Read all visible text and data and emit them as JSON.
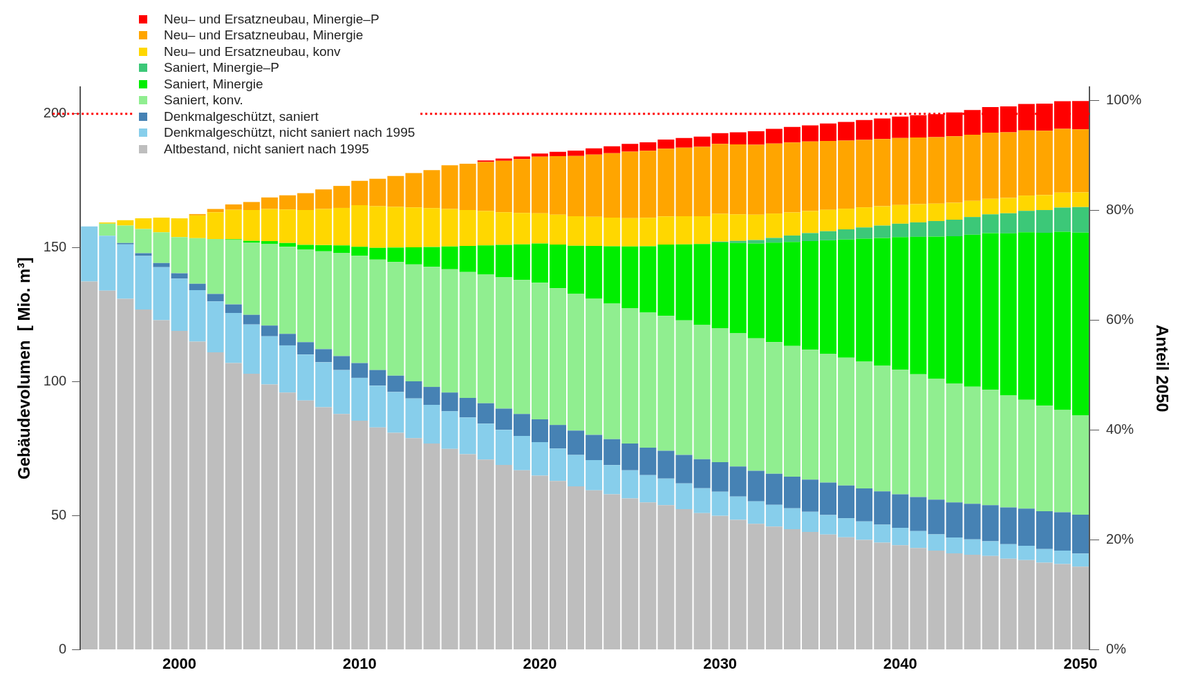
{
  "chart_data": {
    "type": "bar",
    "stacked": true,
    "ylabel": "Gebäudevolumen  [ Mio. m³]",
    "y2label": "Anteil 2050",
    "categories": [
      null,
      null,
      null,
      null,
      null,
      "2000",
      null,
      null,
      null,
      null,
      null,
      null,
      null,
      null,
      null,
      "2010",
      null,
      null,
      null,
      null,
      null,
      null,
      null,
      null,
      null,
      "2020",
      null,
      null,
      null,
      null,
      null,
      null,
      null,
      null,
      null,
      "2030",
      null,
      null,
      null,
      null,
      null,
      null,
      null,
      null,
      null,
      "2040",
      null,
      null,
      null,
      null,
      null,
      null,
      null,
      null,
      null,
      "2050"
    ],
    "ylim": [
      0,
      210
    ],
    "yticks": [
      0,
      50,
      100,
      150,
      200
    ],
    "y2lim": [
      0,
      102.4
    ],
    "y2ticks": [
      {
        "value": 0,
        "label": "0%"
      },
      {
        "value": 20,
        "label": "20%"
      },
      {
        "value": 40,
        "label": "40%"
      },
      {
        "value": 60,
        "label": "60%"
      },
      {
        "value": 80,
        "label": "80%"
      },
      {
        "value": 100,
        "label": "100%"
      }
    ],
    "legend": "top left",
    "ref_lines": [
      {
        "axis": "y",
        "value": 200,
        "color": "#ff0000",
        "line_style": "dotted"
      }
    ],
    "series": [
      {
        "name": "Altbestand, nicht saniert nach 1995",
        "color": "#bebebe",
        "values": [
          137.4,
          134,
          131,
          127,
          123,
          119,
          115,
          111,
          107,
          103,
          99,
          96,
          93,
          90.5,
          88,
          85.5,
          83,
          81,
          79,
          77,
          75,
          73,
          71,
          69,
          67,
          65,
          63,
          61,
          59.5,
          58,
          56.5,
          55,
          54,
          52.5,
          51,
          50,
          48.5,
          47,
          46,
          45,
          44,
          43,
          42,
          41,
          40,
          39,
          38,
          37,
          36,
          35.5,
          35,
          34,
          33.5,
          32.5,
          32,
          31
        ]
      },
      {
        "name": "Denkmalgeschützt, nicht saniert nach 1995",
        "color": "#87ceeb",
        "values": [
          20.6,
          20.5,
          20.3,
          20,
          19.8,
          19.5,
          19.2,
          19,
          18.7,
          18.4,
          18,
          17.6,
          17.2,
          16.8,
          16.4,
          16,
          15.6,
          15.2,
          14.8,
          14.4,
          14,
          13.7,
          13.4,
          13.1,
          12.8,
          12.5,
          12.1,
          11.7,
          11.3,
          10.9,
          10.5,
          10.2,
          9.9,
          9.6,
          9.3,
          9,
          8.7,
          8.4,
          8.1,
          7.8,
          7.5,
          7.3,
          7.1,
          6.9,
          6.7,
          6.5,
          6.3,
          6.1,
          5.9,
          5.7,
          5.5,
          5.4,
          5.3,
          5.1,
          5,
          4.9
        ]
      },
      {
        "name": "Denkmalgeschützt, saniert",
        "color": "#4682b4",
        "values": [
          0,
          0,
          0.5,
          1,
          1.5,
          2,
          2.4,
          2.8,
          3.2,
          3.6,
          4,
          4.3,
          4.6,
          4.9,
          5.2,
          5.5,
          5.8,
          6.1,
          6.4,
          6.7,
          7,
          7.3,
          7.6,
          7.9,
          8.2,
          8.5,
          8.8,
          9.1,
          9.4,
          9.7,
          10,
          10.2,
          10.4,
          10.6,
          10.8,
          11,
          11.2,
          11.4,
          11.6,
          11.8,
          12,
          12.1,
          12.2,
          12.3,
          12.4,
          12.5,
          12.7,
          12.9,
          13.1,
          13.3,
          13.5,
          13.7,
          13.9,
          14.1,
          14.3,
          14.5
        ]
      },
      {
        "name": "Saniert, konv.",
        "color": "#90ee90",
        "values": [
          0,
          4.5,
          6.5,
          9,
          11.5,
          13.5,
          17,
          20.5,
          24,
          27,
          30.5,
          32.5,
          34.5,
          36.5,
          38.5,
          40,
          41.2,
          42.4,
          43.6,
          44.8,
          46,
          47,
          48,
          49,
          50,
          51,
          51,
          51,
          50.8,
          50.6,
          50.5,
          50.4,
          50.3,
          50.2,
          50.1,
          50,
          49.7,
          49.4,
          49.1,
          48.8,
          48.5,
          48.1,
          47.7,
          47.3,
          46.9,
          46.5,
          45.8,
          45.1,
          44.4,
          43.7,
          43,
          41.8,
          40.6,
          39.4,
          38.2,
          37
        ]
      },
      {
        "name": "Saniert, Minergie",
        "color": "#00ee00",
        "values": [
          0,
          0,
          0,
          0,
          0,
          0,
          0,
          0,
          0.3,
          0.6,
          1,
          1.4,
          1.8,
          2.3,
          2.8,
          3.4,
          4.4,
          5.4,
          6.4,
          7.4,
          8.5,
          9.7,
          10.9,
          12.1,
          13.3,
          14.6,
          16.3,
          18,
          19.7,
          21.4,
          23,
          24.8,
          26.6,
          28.4,
          30.2,
          32,
          33.7,
          35.4,
          37.1,
          38.8,
          40.5,
          42.3,
          44.1,
          45.9,
          47.7,
          49.5,
          51.3,
          53.1,
          54.9,
          56.7,
          58.5,
          60.5,
          62.5,
          64.5,
          66.5,
          68.3
        ]
      },
      {
        "name": "Saniert, Minergie–P",
        "color": "#3cc878",
        "values": [
          0,
          0,
          0,
          0,
          0,
          0,
          0,
          0,
          0,
          0,
          0,
          0,
          0,
          0,
          0,
          0,
          0,
          0,
          0,
          0,
          0,
          0,
          0,
          0,
          0,
          0,
          0,
          0,
          0,
          0,
          0,
          0,
          0,
          0,
          0,
          0.3,
          0.8,
          1.3,
          1.8,
          2.4,
          3,
          3.4,
          3.8,
          4.2,
          4.6,
          5,
          5.4,
          5.8,
          6.2,
          6.6,
          7,
          7.5,
          8,
          8.5,
          9,
          9.5
        ]
      },
      {
        "name": "Neu– und Ersatzneubau, konv",
        "color": "#ffd700",
        "values": [
          0,
          0.5,
          2,
          4,
          5.5,
          7,
          8.5,
          10,
          11,
          11.5,
          12,
          12.5,
          13,
          13.5,
          14,
          15.5,
          15.5,
          15.2,
          14.9,
          14.5,
          14,
          13.4,
          12.8,
          12.2,
          11.7,
          11.3,
          11.2,
          11,
          10.9,
          10.7,
          10.6,
          10.6,
          10.5,
          10.5,
          10.4,
          10.4,
          9.9,
          9.5,
          9.1,
          8.6,
          8.2,
          8,
          7.7,
          7.5,
          7.2,
          7,
          6.8,
          6.5,
          6.3,
          6,
          5.8,
          5.7,
          5.7,
          5.6,
          5.6,
          5.5
        ]
      },
      {
        "name": "Neu– und Ersatzneubau, Minergie",
        "color": "#ffa500",
        "values": [
          0,
          0,
          0,
          0,
          0,
          0,
          0.5,
          1.2,
          2,
          3,
          4.3,
          5.3,
          6.3,
          7.3,
          8.2,
          9.1,
          10.3,
          11.5,
          12.8,
          14.2,
          16.3,
          17.3,
          18.3,
          19.2,
          20.1,
          21.1,
          21.8,
          22.5,
          23.2,
          24,
          24.8,
          25,
          25.3,
          25.6,
          25.9,
          26.1,
          26.1,
          26.1,
          26.1,
          26.1,
          26,
          25.7,
          25.4,
          25.2,
          25.1,
          25,
          24.9,
          24.8,
          24.8,
          24.7,
          24.7,
          24.5,
          24.3,
          24,
          23.8,
          23.5
        ]
      },
      {
        "name": "Neu– und Ersatzneubau, Minergie–P",
        "color": "#ff0000",
        "values": [
          0,
          0,
          0,
          0,
          0,
          0,
          0,
          0,
          0,
          0,
          0,
          0,
          0,
          0,
          0,
          0,
          0,
          0,
          0,
          0,
          0,
          0,
          0.6,
          0.8,
          1,
          1.2,
          1.6,
          2,
          2.3,
          2.6,
          2.9,
          3.2,
          3.4,
          3.6,
          3.8,
          4,
          4.5,
          5,
          5.5,
          5.8,
          6,
          6.5,
          7,
          7.4,
          7.7,
          8,
          8.3,
          8.6,
          8.9,
          9.2,
          9.5,
          9.7,
          9.9,
          10.1,
          10.3,
          10.6
        ]
      }
    ]
  }
}
